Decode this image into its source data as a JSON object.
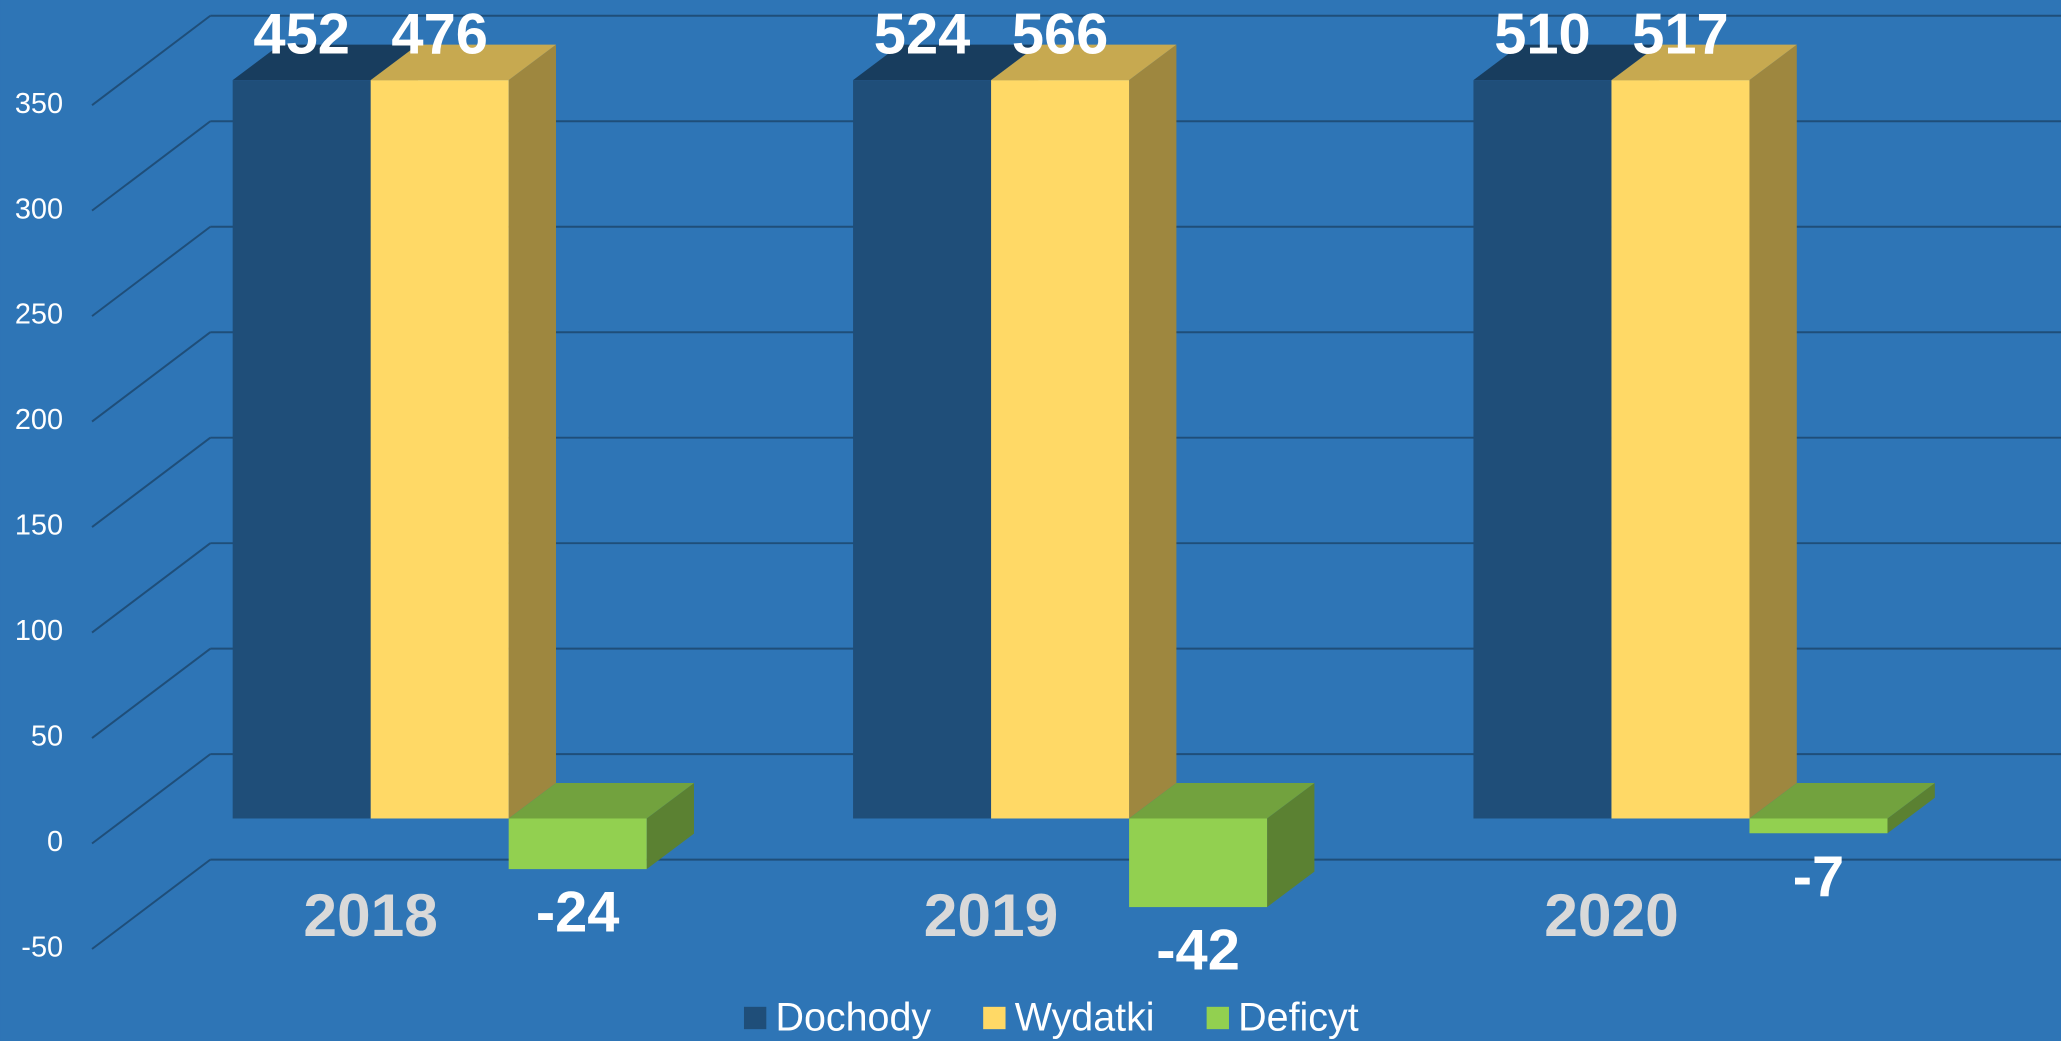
{
  "chart_data": {
    "type": "bar3d",
    "categories": [
      "2018",
      "2019",
      "2020"
    ],
    "series": [
      {
        "name": "Dochody",
        "color": "#1f4e79",
        "values": [
          452,
          524,
          510
        ]
      },
      {
        "name": "Wydatki",
        "color": "#ffd966",
        "values": [
          476,
          566,
          517
        ]
      },
      {
        "name": "Deficyt",
        "color": "#92d050",
        "values": [
          -24,
          -42,
          -7
        ]
      }
    ],
    "ylim": [
      -50,
      350
    ],
    "yticks": [
      -50,
      0,
      50,
      100,
      150,
      200,
      250,
      300,
      350
    ],
    "grid": true,
    "legend": "bottom"
  }
}
